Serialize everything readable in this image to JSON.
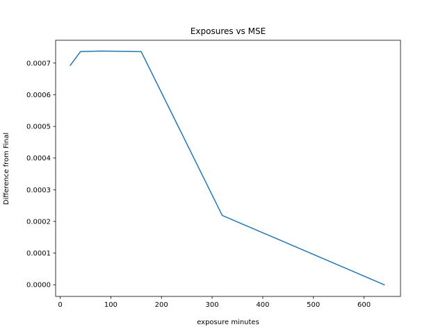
{
  "chart_data": {
    "type": "line",
    "title": "Exposures vs MSE",
    "xlabel": "exposure minutes",
    "ylabel": "Difference from Final",
    "xlim": [
      -9,
      672
    ],
    "ylim": [
      -3.68e-05,
      0.000772
    ],
    "x_ticks": [
      0,
      100,
      200,
      300,
      400,
      500,
      600
    ],
    "x_tick_labels": [
      "0",
      "100",
      "200",
      "300",
      "400",
      "500",
      "600"
    ],
    "y_ticks": [
      0.0,
      0.0001,
      0.0002,
      0.0003,
      0.0004,
      0.0005,
      0.0006,
      0.0007
    ],
    "y_tick_labels": [
      "0.0000",
      "0.0001",
      "0.0002",
      "0.0003",
      "0.0004",
      "0.0005",
      "0.0006",
      "0.0007"
    ],
    "grid": false,
    "series": [
      {
        "color": "#1f77b4",
        "x": [
          20,
          40,
          80,
          160,
          320,
          640
        ],
        "y": [
          0.000693,
          0.000736,
          0.000738,
          0.000736,
          0.000219,
          0.0
        ]
      }
    ]
  }
}
